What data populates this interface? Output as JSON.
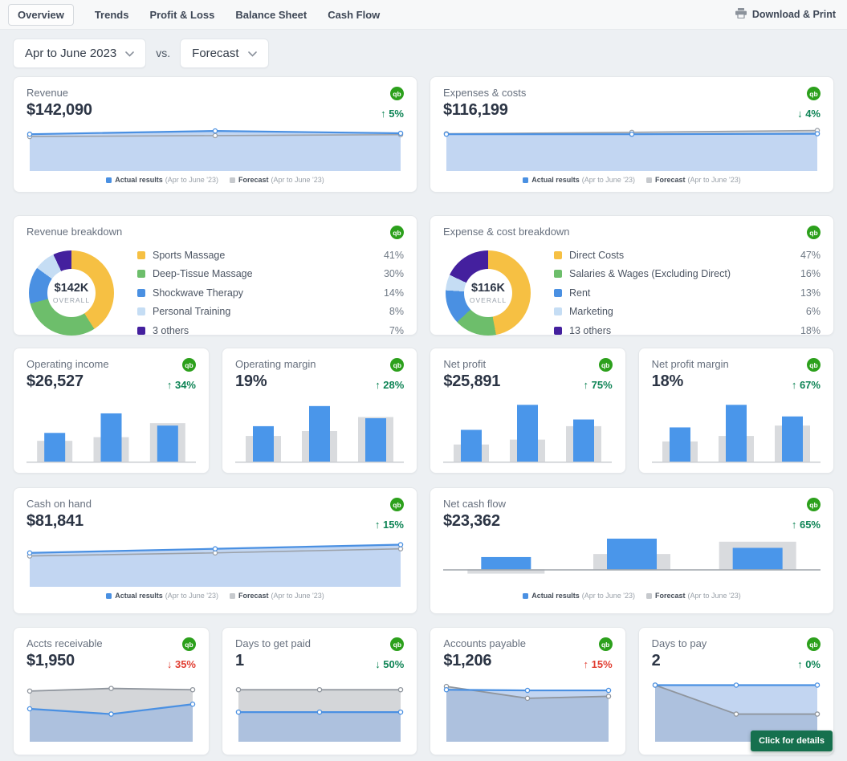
{
  "nav": {
    "tabs": [
      {
        "label": "Overview",
        "active": true
      },
      {
        "label": "Trends",
        "active": false
      },
      {
        "label": "Profit & Loss",
        "active": false
      },
      {
        "label": "Balance Sheet",
        "active": false
      },
      {
        "label": "Cash Flow",
        "active": false
      }
    ],
    "download_label": "Download & Print"
  },
  "filters": {
    "period": "Apr to June 2023",
    "vs_label": "vs.",
    "compare": "Forecast"
  },
  "icons": {
    "qb": "qb"
  },
  "legend": {
    "actual": "Actual results",
    "forecast": "Forecast",
    "period": "(Apr to June '23)"
  },
  "colors": {
    "actual_blue": "#4a90e2",
    "actual_fill": "#c2d6f2",
    "forecast_gray": "#9ba1a9",
    "forecast_fill": "#d6d8db",
    "bar_blue": "#4a96ea",
    "bar_gray": "#d9dbde",
    "qb_green": "#2CA01C",
    "delta_green": "#0e8455",
    "delta_red": "#e13e32",
    "button_green": "#16704e"
  },
  "cards": {
    "revenue": {
      "title": "Revenue",
      "value": "$142,090",
      "delta": {
        "text": "↑ 5%",
        "tone": "green"
      },
      "chart": {
        "type": "area",
        "series": [
          {
            "name": "Forecast",
            "color": "#9ba1a9",
            "fill": "#d6d8db",
            "lw": 1.6,
            "norm": [
              0.74,
              0.76,
              0.78
            ]
          },
          {
            "name": "Actual results",
            "color": "#4a90e2",
            "fill": "#c2d6f2",
            "lw": 2.2,
            "norm": [
              0.79,
              0.86,
              0.81
            ]
          }
        ]
      }
    },
    "expenses": {
      "title": "Expenses & costs",
      "value": "$116,199",
      "delta": {
        "text": "↓ 4%",
        "tone": "green"
      },
      "chart": {
        "type": "area",
        "series": [
          {
            "name": "Forecast",
            "color": "#9ba1a9",
            "fill": "#d6d8db",
            "lw": 1.6,
            "norm": [
              0.8,
              0.83,
              0.87
            ]
          },
          {
            "name": "Actual results",
            "color": "#4a90e2",
            "fill": "#c2d6f2",
            "lw": 2.2,
            "norm": [
              0.79,
              0.79,
              0.8
            ]
          }
        ]
      }
    },
    "revenue_breakdown": {
      "title": "Revenue breakdown",
      "center": {
        "value": "$142K",
        "caption": "OVERALL"
      },
      "slices": [
        {
          "label": "Sports Massage",
          "pct": 41,
          "color": "#F6C043"
        },
        {
          "label": "Deep-Tissue Massage",
          "pct": 30,
          "color": "#6DBE6B"
        },
        {
          "label": "Shockwave Therapy",
          "pct": 14,
          "color": "#4A90E2"
        },
        {
          "label": "Personal Training",
          "pct": 8,
          "color": "#C5DDF4"
        },
        {
          "label": "3 others",
          "pct": 7,
          "color": "#44209E"
        }
      ]
    },
    "expense_breakdown": {
      "title": "Expense & cost breakdown",
      "center": {
        "value": "$116K",
        "caption": "OVERALL"
      },
      "slices": [
        {
          "label": "Direct Costs",
          "pct": 47,
          "color": "#F6C043"
        },
        {
          "label": "Salaries & Wages (Excluding Direct)",
          "pct": 16,
          "color": "#6DBE6B"
        },
        {
          "label": "Rent",
          "pct": 13,
          "color": "#4A90E2"
        },
        {
          "label": "Marketing",
          "pct": 6,
          "color": "#C5DDF4"
        },
        {
          "label": "13 others",
          "pct": 18,
          "color": "#44209E"
        }
      ]
    },
    "operating_income": {
      "title": "Operating income",
      "value": "$26,527",
      "delta": {
        "text": "↑ 34%",
        "tone": "green"
      },
      "chart": {
        "type": "bars",
        "forecast": [
          0.34,
          0.4,
          0.63
        ],
        "actual": [
          0.47,
          0.79,
          0.59
        ]
      }
    },
    "operating_margin": {
      "title": "Operating margin",
      "value": "19%",
      "delta": {
        "text": "↑ 28%",
        "tone": "green"
      },
      "chart": {
        "type": "bars",
        "forecast": [
          0.42,
          0.5,
          0.73
        ],
        "actual": [
          0.58,
          0.91,
          0.71
        ]
      }
    },
    "net_profit": {
      "title": "Net profit",
      "value": "$25,891",
      "delta": {
        "text": "↑ 75%",
        "tone": "green"
      },
      "chart": {
        "type": "bars",
        "forecast": [
          0.28,
          0.36,
          0.58
        ],
        "actual": [
          0.52,
          0.93,
          0.69
        ]
      }
    },
    "net_profit_margin": {
      "title": "Net profit margin",
      "value": "18%",
      "delta": {
        "text": "↑ 67%",
        "tone": "green"
      },
      "chart": {
        "type": "bars",
        "forecast": [
          0.33,
          0.42,
          0.59
        ],
        "actual": [
          0.56,
          0.93,
          0.74
        ]
      }
    },
    "cash_on_hand": {
      "title": "Cash on hand",
      "value": "$81,841",
      "delta": {
        "text": "↑ 15%",
        "tone": "green"
      },
      "chart": {
        "type": "area",
        "series": [
          {
            "name": "Forecast",
            "color": "#9ba1a9",
            "fill": "#d6d8db",
            "lw": 1.6,
            "norm": [
              0.6,
              0.66,
              0.74
            ]
          },
          {
            "name": "Actual results",
            "color": "#4a90e2",
            "fill": "#c2d6f2",
            "lw": 2.2,
            "norm": [
              0.66,
              0.74,
              0.82
            ]
          }
        ]
      }
    },
    "net_cash_flow": {
      "title": "Net cash flow",
      "value": "$23,362",
      "delta": {
        "text": "↑ 65%",
        "tone": "green"
      },
      "chart": {
        "type": "posneg",
        "axis": 0.66,
        "gw": 96,
        "bw": 62,
        "forecast": [
          -0.14,
          0.5,
          0.9
        ],
        "actual": [
          0.4,
          1.0,
          0.7
        ]
      }
    },
    "accts_receivable": {
      "title": "Accts receivable",
      "value": "$1,950",
      "delta": {
        "text": "↓ 35%",
        "tone": "red"
      },
      "chart": {
        "type": "area",
        "series": [
          {
            "name": "Forecast",
            "color": "#8f959d",
            "fill": "#d4d6d9",
            "lw": 1.8,
            "norm": [
              0.77,
              0.81,
              0.79
            ]
          },
          {
            "name": "Actual results",
            "color": "#4a90e2",
            "fill": "rgba(133,171,227,0.5)",
            "lw": 2.2,
            "norm": [
              0.5,
              0.42,
              0.57
            ]
          }
        ]
      }
    },
    "days_to_get_paid": {
      "title": "Days to get paid",
      "value": "1",
      "delta": {
        "text": "↓ 50%",
        "tone": "green"
      },
      "chart": {
        "type": "area",
        "series": [
          {
            "name": "Forecast",
            "color": "#8f959d",
            "fill": "#d4d6d9",
            "lw": 1.8,
            "norm": [
              0.79,
              0.79,
              0.79
            ]
          },
          {
            "name": "Actual results",
            "color": "#4a90e2",
            "fill": "rgba(133,171,227,0.5)",
            "lw": 2.2,
            "norm": [
              0.45,
              0.45,
              0.45
            ]
          }
        ]
      }
    },
    "accounts_payable": {
      "title": "Accounts payable",
      "value": "$1,206",
      "delta": {
        "text": "↑ 15%",
        "tone": "red"
      },
      "chart": {
        "type": "area",
        "series": [
          {
            "name": "Forecast",
            "color": "#8f959d",
            "fill": "#d4d6d9",
            "lw": 1.8,
            "norm": [
              0.84,
              0.66,
              0.69
            ]
          },
          {
            "name": "Actual results",
            "color": "#4a90e2",
            "fill": "rgba(133,171,227,0.5)",
            "lw": 2.2,
            "norm": [
              0.79,
              0.78,
              0.78
            ]
          }
        ]
      }
    },
    "days_to_pay": {
      "title": "Days to pay",
      "value": "2",
      "delta": {
        "text": "↑ 0%",
        "tone": "green"
      },
      "button_label": "Click for details",
      "chart": {
        "type": "area",
        "series": [
          {
            "name": "Forecast",
            "color": "#8f959d",
            "fill": "#d4d6d9",
            "lw": 1.8,
            "norm": [
              0.86,
              0.42,
              0.42
            ]
          },
          {
            "name": "Actual results",
            "color": "#4a90e2",
            "fill": "rgba(133,171,227,0.5)",
            "lw": 2.2,
            "norm": [
              0.86,
              0.86,
              0.86
            ]
          }
        ]
      }
    }
  }
}
